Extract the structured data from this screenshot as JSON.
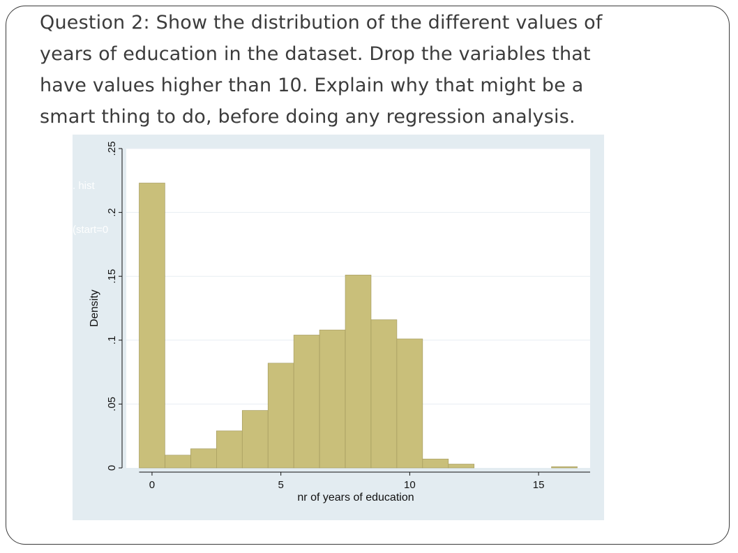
{
  "question": {
    "line1": "Question 2: Show the distribution of the different values of",
    "line2": "years of education in the dataset. Drop the variables that",
    "line3": "have values higher than 10. Explain why that might be a",
    "line4": "smart thing to do, before doing any regression analysis."
  },
  "command_overlay": {
    "line1": ". hist",
    "line2": "(start=0"
  },
  "colors": {
    "bar_fill": "#c9bf7a",
    "bar_stroke": "#9f955a",
    "panel_bg": "#e3ecf1",
    "plot_bg": "#ffffff",
    "grid": "#e7edf2",
    "text": "#3b3b3b"
  },
  "chart_data": {
    "type": "bar",
    "xlabel": "nr of years of education",
    "ylabel": "Density",
    "xlim": [
      -1,
      17
    ],
    "ylim": [
      0,
      0.25
    ],
    "xticks": [
      0,
      5,
      10,
      15
    ],
    "xtick_labels": [
      "0",
      "5",
      "10",
      "15"
    ],
    "yticks": [
      0,
      0.05,
      0.1,
      0.15,
      0.2,
      0.25
    ],
    "ytick_labels": [
      "0",
      ".05",
      ".1",
      ".15",
      ".2",
      ".25"
    ],
    "grid": true,
    "bin_width": 1,
    "bins": [
      {
        "x_start": -0.5,
        "value": 0.223
      },
      {
        "x_start": 0.5,
        "value": 0.01
      },
      {
        "x_start": 1.5,
        "value": 0.015
      },
      {
        "x_start": 2.5,
        "value": 0.029
      },
      {
        "x_start": 3.5,
        "value": 0.045
      },
      {
        "x_start": 4.5,
        "value": 0.082
      },
      {
        "x_start": 5.5,
        "value": 0.104
      },
      {
        "x_start": 6.5,
        "value": 0.108
      },
      {
        "x_start": 7.5,
        "value": 0.151
      },
      {
        "x_start": 8.5,
        "value": 0.116
      },
      {
        "x_start": 9.5,
        "value": 0.101
      },
      {
        "x_start": 10.5,
        "value": 0.007
      },
      {
        "x_start": 11.5,
        "value": 0.003
      },
      {
        "x_start": 15.5,
        "value": 0.001
      }
    ]
  }
}
